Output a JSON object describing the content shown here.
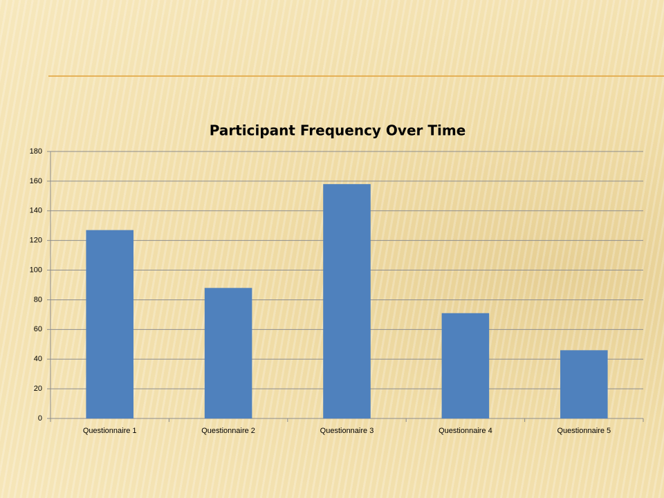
{
  "chart_data": {
    "type": "bar",
    "title": "Participant Frequency Over Time",
    "categories": [
      "Questionnaire 1",
      "Questionnaire 2",
      "Questionnaire 3",
      "Questionnaire 4",
      "Questionnaire 5"
    ],
    "values": [
      127,
      88,
      158,
      71,
      46
    ],
    "color": "#4f81bd",
    "ylim": [
      0,
      180
    ],
    "yticks": [
      0,
      20,
      40,
      60,
      80,
      100,
      120,
      140,
      160,
      180
    ],
    "grid": true
  }
}
